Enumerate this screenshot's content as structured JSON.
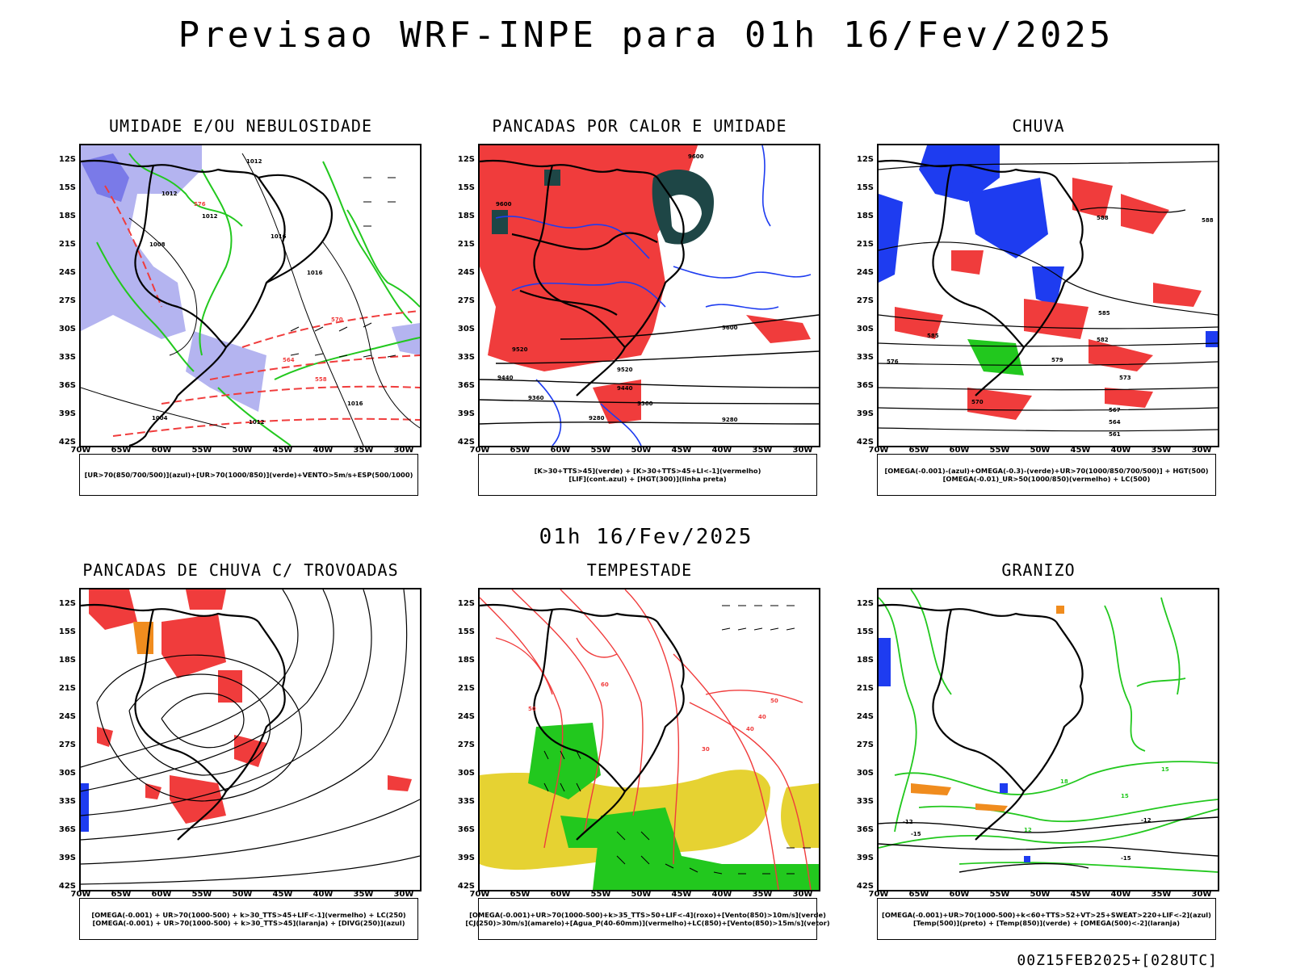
{
  "main_title": "Previsao WRF-INPE  para 01h 16/Fev/2025",
  "mid_title": "01h 16/Fev/2025",
  "footer_stamp": "00Z15FEB2025+[028UTC]",
  "lat_labels": [
    "12S",
    "15S",
    "18S",
    "21S",
    "24S",
    "27S",
    "30S",
    "33S",
    "36S",
    "39S",
    "42S"
  ],
  "lon_labels": [
    "70W",
    "65W",
    "60W",
    "55W",
    "50W",
    "45W",
    "40W",
    "35W",
    "30W"
  ],
  "colors": {
    "humidity_blue": "#b4b4f0",
    "strong_blue": "#1e3cf0",
    "green": "#22c81e",
    "red": "#f03c3c",
    "dark_teal": "#1e4646",
    "yellow": "#e6d232",
    "orange": "#f08c1e"
  },
  "panels": [
    {
      "title": "UMIDADE E/OU NEBULOSIDADE",
      "legend": [
        "[UR>70(850/700/500)](azul)+[UR>70(1000/850)](verde)+VENTO>5m/s+ESP(500/1000)"
      ],
      "contour_labels": [
        "1012",
        "1012",
        "1012",
        "1008",
        "1016",
        "1016",
        "1016",
        "1004",
        "1012",
        "576",
        "570",
        "564",
        "558"
      ]
    },
    {
      "title": "PANCADAS POR CALOR E UMIDADE",
      "legend": [
        "[K>30+TTS>45](verde) + [K>30+TTS>45+LI<-1](vermelho)",
        "[LIF](cont.azul) + [HGT(300)](linha preta)"
      ],
      "contour_labels": [
        "9600",
        "9600",
        "9520",
        "9440",
        "9360",
        "9280",
        "9600",
        "9520",
        "9440",
        "9360",
        "9280"
      ]
    },
    {
      "title": "CHUVA",
      "legend": [
        "[OMEGA(-0.001)-(azul)+OMEGA(-0.3)-(verde)+UR>70(1000/850/700/500)] + HGT(500)",
        "[OMEGA(-0.01)_UR>50(1000/850)(vermelho) + LC(500)"
      ],
      "contour_labels": [
        "588",
        "585",
        "582",
        "579",
        "576",
        "573",
        "570",
        "567",
        "564",
        "561",
        "588",
        "585"
      ]
    },
    {
      "title": "PANCADAS DE CHUVA C/ TROVOADAS",
      "legend": [
        "[OMEGA(-0.001) + UR>70(1000-500) + k>30_TTS>45+LIF<-1](vermelho) + LC(250)",
        "[OMEGA(-0.001) + UR>70(1000-500) + k>30_TTS>45](laranja) + [DIVG(250)](azul)"
      ],
      "contour_labels": []
    },
    {
      "title": "TEMPESTADE",
      "legend": [
        "[OMEGA(-0.001)+UR>70(1000-500)+k>35_TTS>50+LIF<-4](roxo)+[Vento(850)>10m/s](verde)",
        "[CJ(250)>30m/s](amarelo)+[Agua_P(40-60mm)](vermelho)+LC(850)+[Vento(850)>15m/s](vetor)"
      ],
      "contour_labels": [
        "60",
        "50",
        "40",
        "30",
        "40",
        "50"
      ]
    },
    {
      "title": "GRANIZO",
      "legend": [
        "[OMEGA(-0.001)+UR>70(1000-500)+k<60+TTS>52+VT>25+SWEAT>220+LIF<-2](azul)",
        "[Temp(500)](preto) + [Temp(850)](verde) + [OMEGA(500)<-2](laranja)"
      ],
      "contour_labels": [
        "-12",
        "-15",
        "-12",
        "-15",
        "15",
        "18",
        "12",
        "15"
      ]
    }
  ]
}
